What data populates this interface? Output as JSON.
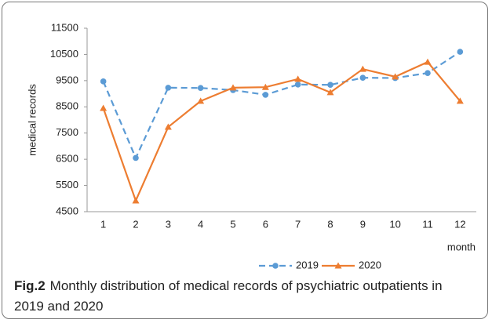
{
  "chart_data": {
    "type": "line",
    "categories": [
      1,
      2,
      3,
      4,
      5,
      6,
      7,
      8,
      9,
      10,
      11,
      12
    ],
    "series": [
      {
        "name": "2019",
        "color": "#5b9bd5",
        "line_style": "dashed",
        "marker": "circle",
        "values": [
          9470,
          6550,
          9230,
          9220,
          9140,
          8960,
          9350,
          9340,
          9610,
          9600,
          9790,
          10600
        ]
      },
      {
        "name": "2020",
        "color": "#ed7d31",
        "line_style": "solid",
        "marker": "triangle",
        "values": [
          8450,
          4920,
          7730,
          8720,
          9230,
          9250,
          9560,
          9050,
          9940,
          9650,
          10210,
          8720
        ]
      }
    ],
    "ylim": [
      4500,
      11500
    ],
    "yticks": [
      4500,
      5500,
      6500,
      7500,
      8500,
      9500,
      10500,
      11500
    ],
    "y_label": "medical records",
    "x_label": "month",
    "grid": false,
    "legend": "bottom"
  },
  "caption": {
    "label": "Fig.2",
    "text": "Monthly distribution of medical records of psychiatric outpatients in 2019 and 2020"
  }
}
